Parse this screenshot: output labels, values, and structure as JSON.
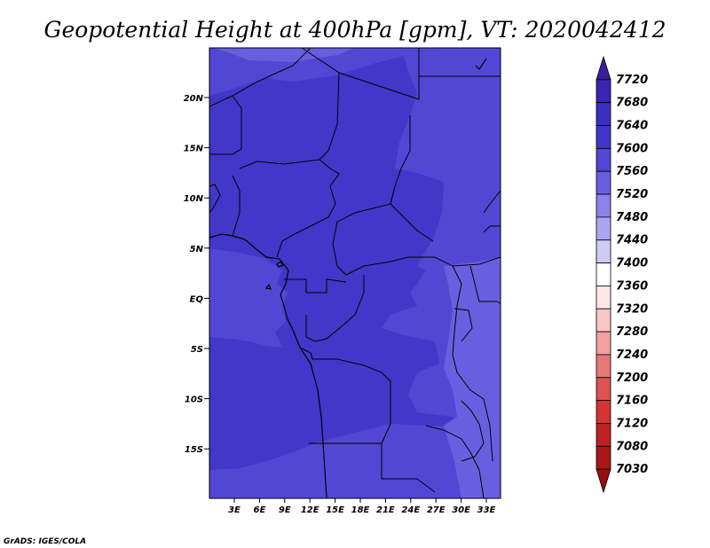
{
  "title": "Geopotential Height at 400hPa [gpm], VT: 2020042412",
  "credit": "GrADS: IGES/COLA",
  "lat_ticks": [
    "20N",
    "15N",
    "10N",
    "5N",
    "EQ",
    "5S",
    "10S",
    "15S"
  ],
  "lon_ticks": [
    "3E",
    "6E",
    "9E",
    "12E",
    "15E",
    "18E",
    "21E",
    "24E",
    "27E",
    "30E",
    "33E"
  ],
  "colorbar": {
    "labels": [
      "7720",
      "7680",
      "7640",
      "7600",
      "7560",
      "7520",
      "7480",
      "7440",
      "7400",
      "7360",
      "7320",
      "7280",
      "7240",
      "7200",
      "7160",
      "7120",
      "7080",
      "7030"
    ],
    "colors": [
      "#3d1e99",
      "#3a24b0",
      "#3b2fbe",
      "#4236c9",
      "#5346d4",
      "#6a5ee0",
      "#8c82ea",
      "#aca6f0",
      "#cfcbf6",
      "#ffffff",
      "#fde6e6",
      "#f9c6c6",
      "#f2a0a0",
      "#e87878",
      "#dd5252",
      "#d03434",
      "#bd2222",
      "#a81818",
      "#951010"
    ]
  },
  "field_colors": {
    "level_7600": "#4336c8",
    "level_7560": "#5446d4",
    "level_7520": "#6a5ee0"
  }
}
